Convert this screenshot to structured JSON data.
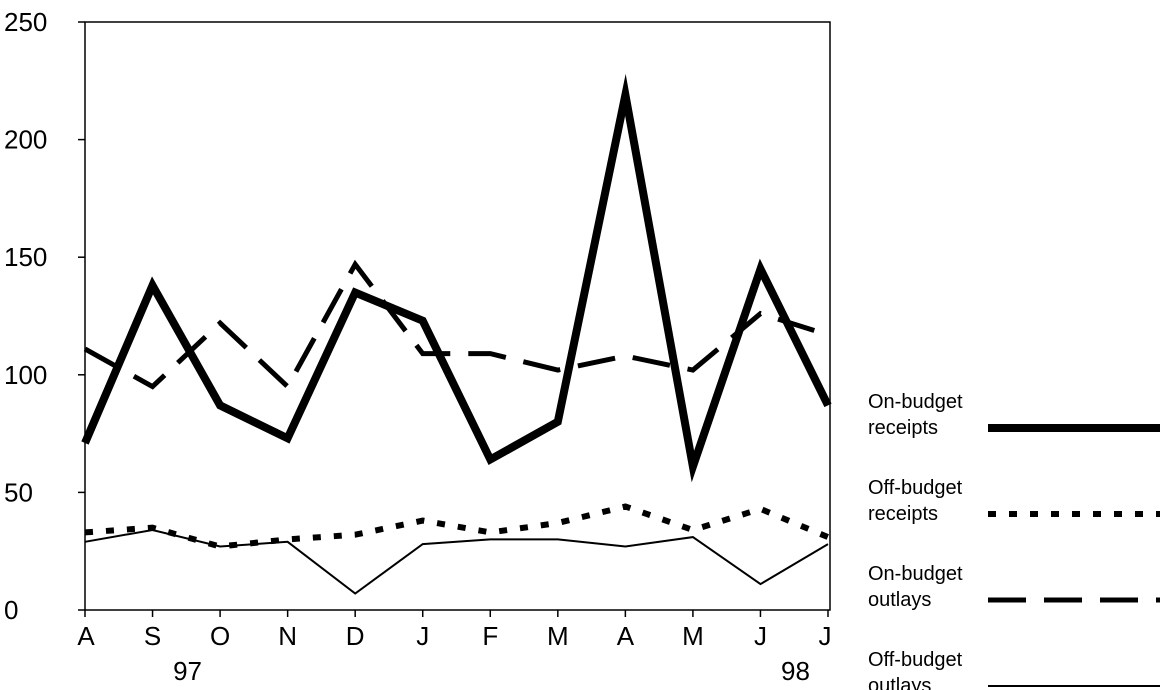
{
  "chart_data": {
    "type": "line",
    "title": "",
    "xlabel": "",
    "ylabel": "",
    "categories": [
      "A",
      "S",
      "O",
      "N",
      "D",
      "J",
      "F",
      "M",
      "A",
      "M",
      "J",
      "J"
    ],
    "year_labels": [
      {
        "category_index": 1,
        "text": "97"
      },
      {
        "category_index": 10,
        "text": "98"
      }
    ],
    "ylim": [
      0,
      250
    ],
    "yticks": [
      0,
      50,
      100,
      150,
      200,
      250
    ],
    "grid": false,
    "legend_position": "right",
    "series": [
      {
        "name": "On-budget receipts",
        "legend_lines": [
          "On-budget",
          "receipts"
        ],
        "style": "thick-solid",
        "values": [
          71,
          138,
          87,
          73,
          135,
          123,
          64,
          80,
          219,
          61,
          145,
          87
        ]
      },
      {
        "name": "Off-budget receipts",
        "legend_lines": [
          "Off-budget",
          "receipts"
        ],
        "style": "dotted",
        "values": [
          33,
          35,
          27,
          30,
          32,
          38,
          33,
          37,
          44,
          34,
          43,
          31
        ]
      },
      {
        "name": "On-budget outlays",
        "legend_lines": [
          "On-budget",
          "outlays"
        ],
        "style": "dashed",
        "values": [
          111,
          95,
          122,
          95,
          147,
          109,
          109,
          102,
          108,
          102,
          126,
          117
        ]
      },
      {
        "name": "Off-budget outlays",
        "legend_lines": [
          "Off-budget",
          "outlays"
        ],
        "style": "thin-solid",
        "values": [
          29,
          34,
          27,
          29,
          7,
          28,
          30,
          30,
          27,
          31,
          11,
          28
        ]
      }
    ],
    "colors": {
      "line": "#000000",
      "background": "#ffffff"
    }
  }
}
